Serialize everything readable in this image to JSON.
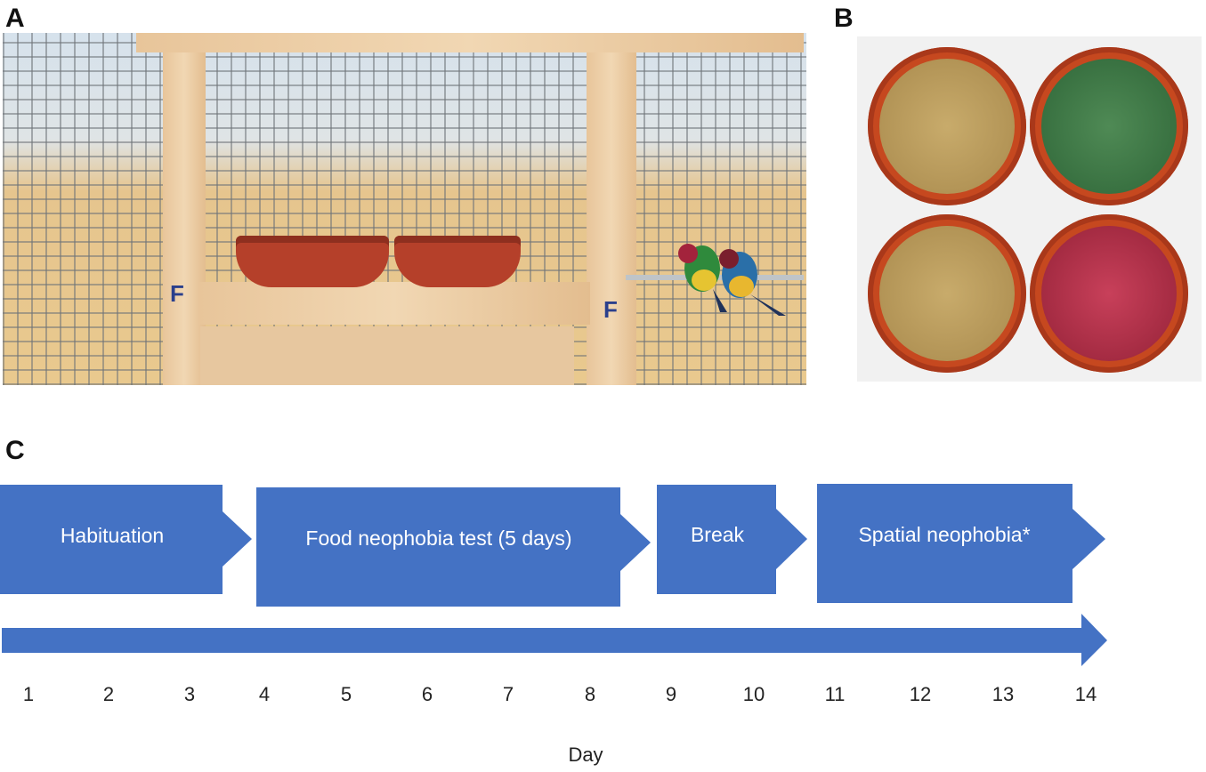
{
  "panels": {
    "a": {
      "label": "A"
    },
    "b": {
      "label": "B"
    },
    "c": {
      "label": "C"
    }
  },
  "photo_a": {
    "cage_markings": [
      "F",
      "F"
    ]
  },
  "timeline": {
    "phases": [
      {
        "label": "Habituation"
      },
      {
        "label": "Food neophobia test (5 days)"
      },
      {
        "label": "Break"
      },
      {
        "label": "Spatial neophobia*"
      }
    ],
    "days": [
      "1",
      "2",
      "3",
      "4",
      "5",
      "6",
      "7",
      "8",
      "9",
      "10",
      "11",
      "12",
      "13",
      "14"
    ],
    "axis_label": "Day"
  },
  "colors": {
    "arrow_fill": "#4472c4",
    "bowl_terracotta": "#c6481f",
    "seed_plain": "#b99a5c",
    "seed_green": "#3f7a45",
    "seed_red": "#b8324a"
  }
}
